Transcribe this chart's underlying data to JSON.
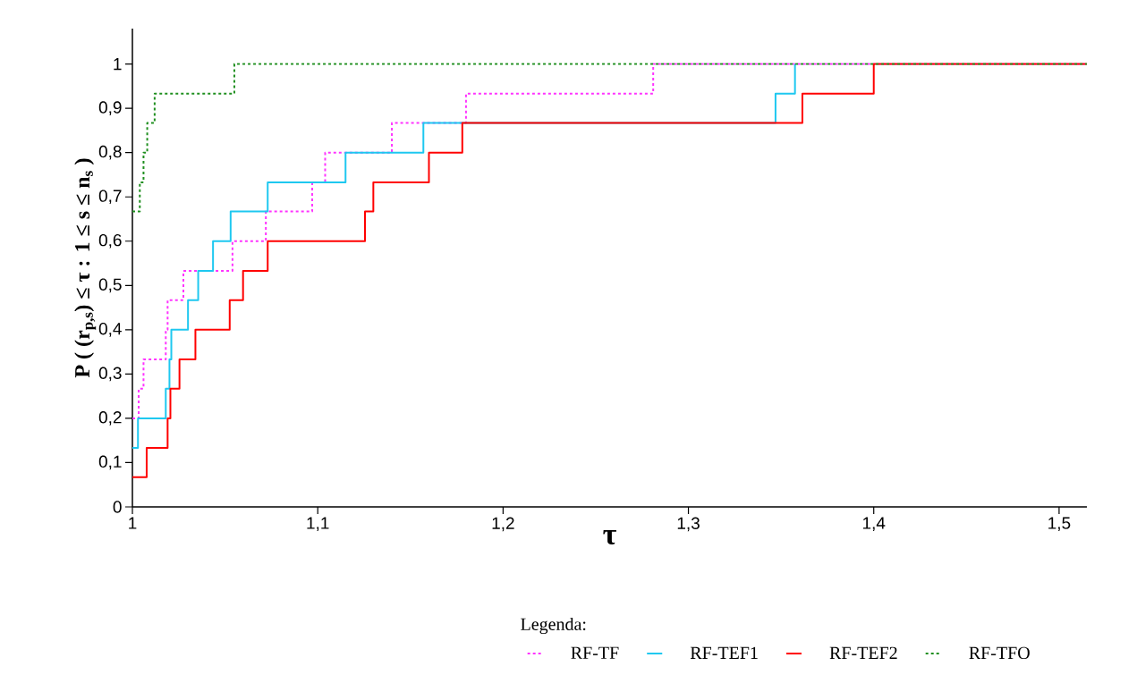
{
  "chart_data": {
    "type": "step",
    "xlabel": "τ",
    "ylabel": "P ( (r$_{p,s}$)  ≤ τ : 1 ≤ s ≤ n$_{s}$ )",
    "legend_title": "Legenda:",
    "legend": "bottom",
    "marker": "none",
    "grid": false,
    "xlim": [
      1,
      1.515
    ],
    "ylim": [
      0,
      1.08
    ],
    "xticks": [
      {
        "value": 1,
        "label": "1"
      },
      {
        "value": 1.1,
        "label": "1,1"
      },
      {
        "value": 1.2,
        "label": "1,2"
      },
      {
        "value": 1.3,
        "label": "1,3"
      },
      {
        "value": 1.4,
        "label": "1,4"
      },
      {
        "value": 1.5,
        "label": "1,5"
      }
    ],
    "yticks": [
      {
        "value": 0,
        "label": "0"
      },
      {
        "value": 0.1,
        "label": "0,1"
      },
      {
        "value": 0.2,
        "label": "0,2"
      },
      {
        "value": 0.3,
        "label": "0,3"
      },
      {
        "value": 0.4,
        "label": "0,4"
      },
      {
        "value": 0.5,
        "label": "0,5"
      },
      {
        "value": 0.6,
        "label": "0,6"
      },
      {
        "value": 0.7,
        "label": "0,7"
      },
      {
        "value": 0.8,
        "label": "0,8"
      },
      {
        "value": 0.9,
        "label": "0,9"
      },
      {
        "value": 1,
        "label": "1"
      }
    ],
    "series": [
      {
        "name": "RF-TF",
        "color": "#ff33ff",
        "line_style": "dashed",
        "x": [
          1,
          1.0034,
          1.006,
          1.018,
          1.019,
          1.0275,
          1.054,
          1.072,
          1.097,
          1.104,
          1.14,
          1.18,
          1.281,
          1.515
        ],
        "values": [
          0.2,
          0.267,
          0.333,
          0.4,
          0.467,
          0.533,
          0.6,
          0.667,
          0.733,
          0.8,
          0.867,
          0.933,
          1,
          1
        ]
      },
      {
        "name": "RF-TEF1",
        "color": "#1ec8f0",
        "line_style": "solid",
        "x": [
          1,
          1.003,
          1.018,
          1.02,
          1.021,
          1.03,
          1.0355,
          1.0435,
          1.053,
          1.073,
          1.115,
          1.157,
          1.347,
          1.3575
        ],
        "values": [
          0.133,
          0.2,
          0.267,
          0.333,
          0.4,
          0.467,
          0.533,
          0.6,
          0.667,
          0.733,
          0.8,
          0.867,
          0.933,
          1
        ]
      },
      {
        "name": "RF-TEF2",
        "color": "#ff0000",
        "line_style": "solid",
        "x": [
          1,
          1.0077,
          1.019,
          1.0205,
          1.0254,
          1.034,
          1.0525,
          1.0597,
          1.073,
          1.1255,
          1.13,
          1.16,
          1.178,
          1.3615,
          1.4,
          1.515
        ],
        "values": [
          0.067,
          0.133,
          0.2,
          0.267,
          0.333,
          0.4,
          0.467,
          0.533,
          0.6,
          0.667,
          0.733,
          0.8,
          0.867,
          0.933,
          1,
          1
        ]
      },
      {
        "name": "RF-TFO",
        "color": "#1f8f1f",
        "line_style": "dashed",
        "x": [
          1,
          1.004,
          1.006,
          1.008,
          1.012,
          1.055,
          1.515
        ],
        "values": [
          0.667,
          0.733,
          0.8,
          0.867,
          0.933,
          1,
          1
        ]
      }
    ]
  }
}
